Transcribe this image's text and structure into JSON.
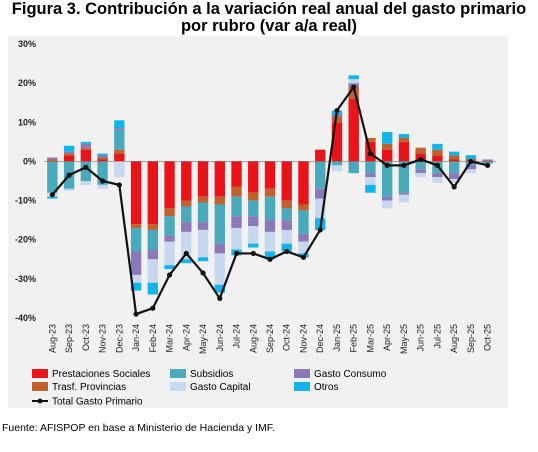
{
  "title": "Figura 3. Contribución a la variación real anual del gasto primario por rubro (var a/a real)",
  "source": "Fuente: AFISPOP en base a Ministerio de Hacienda y IMF.",
  "chart_data": {
    "type": "bar",
    "stacked": true,
    "categories": [
      "Aug-23",
      "Sep-23",
      "Oct-23",
      "Nov-23",
      "Dec-23",
      "Jan-24",
      "Feb-24",
      "Mar-24",
      "Apr-24",
      "May-24",
      "Jun-24",
      "Jul-24",
      "Aug-24",
      "Sep-24",
      "Oct-24",
      "Nov-24",
      "Dec-24",
      "Jan-25",
      "Feb-25",
      "Mar-25",
      "Apr-25",
      "May-25",
      "Jun-25",
      "Jul-25",
      "Aug-25",
      "Sep-25",
      "Oct-25"
    ],
    "tick_labels": [
      "Aug-23",
      "Sep-23",
      "Oct-23",
      "Nov-23",
      "Dec-23",
      "Jan-24",
      "Feb-24",
      "Mar-24",
      "Apr-24",
      "May-24",
      "Jun-24",
      "Jul-24",
      "Aug-24",
      "Sep-24",
      "Oct-24",
      "Nov-24",
      "Dec-24",
      "Jan-25",
      "Feb-25",
      "Mar-25",
      "Apr-25",
      "May-25",
      "Jun-25",
      "Jul-25",
      "Aug-25",
      "Sep-25",
      "Oct-25"
    ],
    "y_ticks": [
      "30%",
      "20%",
      "10%",
      "0%",
      "-10%",
      "-20%",
      "-30%",
      "-40%"
    ],
    "ylim": [
      -40,
      30
    ],
    "grid": false,
    "legend_position": "bottom",
    "series": [
      {
        "name": "Prestaciones Sociales",
        "color": "#e8141a",
        "values": [
          0.2,
          1.5,
          3.0,
          0.5,
          2.0,
          -16.0,
          -16.0,
          -12.0,
          -10.0,
          -9.0,
          -9.0,
          -6.5,
          -8.0,
          -7.0,
          -10.0,
          -11.0,
          3.0,
          10.0,
          16.0,
          5.0,
          3.0,
          5.0,
          2.0,
          1.5,
          0.5,
          0.3,
          0.2
        ]
      },
      {
        "name": "Trasf. Provincias",
        "color": "#c0622d",
        "values": [
          0.3,
          0.5,
          0.5,
          0.5,
          1.0,
          -1.0,
          -1.5,
          -2.0,
          -1.5,
          -1.5,
          -2.0,
          -2.5,
          -2.0,
          -2.0,
          -2.0,
          -1.5,
          0.0,
          1.5,
          3.0,
          1.0,
          1.5,
          1.0,
          1.5,
          1.5,
          1.0,
          0.3,
          0.0
        ]
      },
      {
        "name": "Subsidios",
        "color": "#4aaabb",
        "values": [
          -8.0,
          -7.0,
          -5.0,
          -6.0,
          5.0,
          -6.0,
          -5.0,
          -5.0,
          -4.0,
          -5.0,
          -10.0,
          -5.0,
          -4.0,
          -6.0,
          -3.0,
          -6.0,
          -7.0,
          -1.0,
          -3.0,
          -3.0,
          -9.0,
          -8.0,
          -2.0,
          -3.0,
          -3.0,
          -1.0,
          -0.5
        ]
      },
      {
        "name": "Gasto Consumo",
        "color": "#8a78b8",
        "values": [
          0.5,
          0.5,
          1.0,
          0.5,
          0.5,
          -6.0,
          -2.5,
          -1.5,
          -2.5,
          -2.0,
          -2.5,
          -3.0,
          -2.5,
          -3.0,
          -2.5,
          -2.0,
          -2.5,
          0.5,
          1.0,
          -1.0,
          -1.0,
          -0.5,
          -1.0,
          -1.0,
          -1.5,
          -1.0,
          0.3
        ]
      },
      {
        "name": "Gasto Capital",
        "color": "#c6d8ed",
        "values": [
          -1.0,
          -0.5,
          -1.0,
          -1.0,
          -4.0,
          -2.0,
          -6.0,
          -6.0,
          -7.0,
          -7.0,
          -8.0,
          -5.5,
          -4.5,
          -5.0,
          -3.5,
          -3.0,
          -5.0,
          -1.5,
          1.0,
          -2.0,
          -2.0,
          -2.0,
          -1.0,
          -1.5,
          -1.0,
          -1.0,
          -0.2
        ]
      },
      {
        "name": "Otros",
        "color": "#13b4ea",
        "values": [
          -0.5,
          1.5,
          0.5,
          0.5,
          2.0,
          -2.0,
          -3.0,
          -1.0,
          -1.0,
          -1.0,
          -2.0,
          -1.5,
          -1.0,
          -2.0,
          -2.0,
          -1.0,
          -3.0,
          1.0,
          1.0,
          -2.0,
          3.0,
          1.0,
          0.0,
          1.5,
          1.0,
          1.0,
          0.0
        ]
      },
      {
        "name": "Total Gasto Primario",
        "type": "line",
        "color": "#111111",
        "values": [
          -8.5,
          -3.5,
          -1.5,
          -5.0,
          -6.0,
          -39.0,
          -37.5,
          -29.0,
          -23.5,
          -28.5,
          -35.0,
          -23.5,
          -23.5,
          -25.0,
          -23.0,
          -24.5,
          -17.5,
          13.0,
          19.0,
          2.0,
          -1.0,
          -1.0,
          0.5,
          -1.0,
          -6.5,
          0.0,
          -1.0
        ]
      }
    ]
  }
}
